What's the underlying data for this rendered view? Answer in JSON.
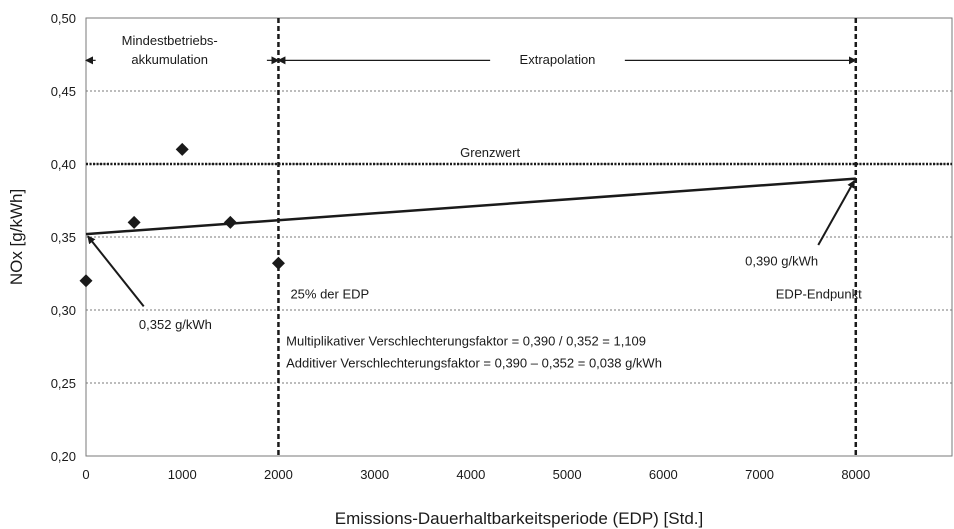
{
  "chart_data": {
    "type": "scatter",
    "xlabel": "Emissions-Dauerhaltbarkeitsperiode (EDP) [Std.]",
    "ylabel": "NOx [g/kWh]",
    "xlim": [
      0,
      9000
    ],
    "ylim": [
      0.2,
      0.5
    ],
    "x_ticks": [
      {
        "value": 0,
        "label": "0"
      },
      {
        "value": 1000,
        "label": "1000"
      },
      {
        "value": 2000,
        "label": "2000"
      },
      {
        "value": 3000,
        "label": "3000"
      },
      {
        "value": 4000,
        "label": "4000"
      },
      {
        "value": 5000,
        "label": "5000"
      },
      {
        "value": 6000,
        "label": "6000"
      },
      {
        "value": 7000,
        "label": "7000"
      },
      {
        "value": 8000,
        "label": "8000"
      }
    ],
    "y_ticks": [
      {
        "value": 0.2,
        "label": "0,20"
      },
      {
        "value": 0.25,
        "label": "0,25"
      },
      {
        "value": 0.3,
        "label": "0,30"
      },
      {
        "value": 0.35,
        "label": "0,35"
      },
      {
        "value": 0.4,
        "label": "0,40"
      },
      {
        "value": 0.45,
        "label": "0,45"
      },
      {
        "value": 0.5,
        "label": "0,50"
      }
    ],
    "grid": "horizontal dotted",
    "points": [
      {
        "x": 0,
        "y": 0.32
      },
      {
        "x": 500,
        "y": 0.36
      },
      {
        "x": 1000,
        "y": 0.41
      },
      {
        "x": 1500,
        "y": 0.36
      },
      {
        "x": 2000,
        "y": 0.332
      }
    ],
    "trend_line": {
      "x": [
        0,
        8000
      ],
      "y": [
        0.352,
        0.39
      ]
    },
    "limit_line": {
      "y": 0.4,
      "label": "Grenzwert"
    },
    "vertical_markers": [
      {
        "x": 2000,
        "label": "25% der EDP"
      },
      {
        "x": 8000,
        "label": "EDP-Endpunkt"
      }
    ],
    "spans": [
      {
        "from": 0,
        "to": 2000,
        "label_line1": "Mindestbetriebs-",
        "label_line2": "akkumulation"
      },
      {
        "from": 2000,
        "to": 8000,
        "label_line1": "Extrapolation"
      }
    ],
    "callouts": [
      {
        "label": "0,352 g/kWh"
      },
      {
        "label": "0,390 g/kWh"
      }
    ],
    "notes": [
      "Multiplikativer Verschlechterungsfaktor = 0,390 / 0,352 = 1,109",
      "Additiver Verschlechterungsfaktor = 0,390 – 0,352 = 0,038 g/kWh"
    ],
    "colors": {
      "marks": "#1a1a1a",
      "grid": "#7a7a7a",
      "background": "#ffffff"
    }
  }
}
